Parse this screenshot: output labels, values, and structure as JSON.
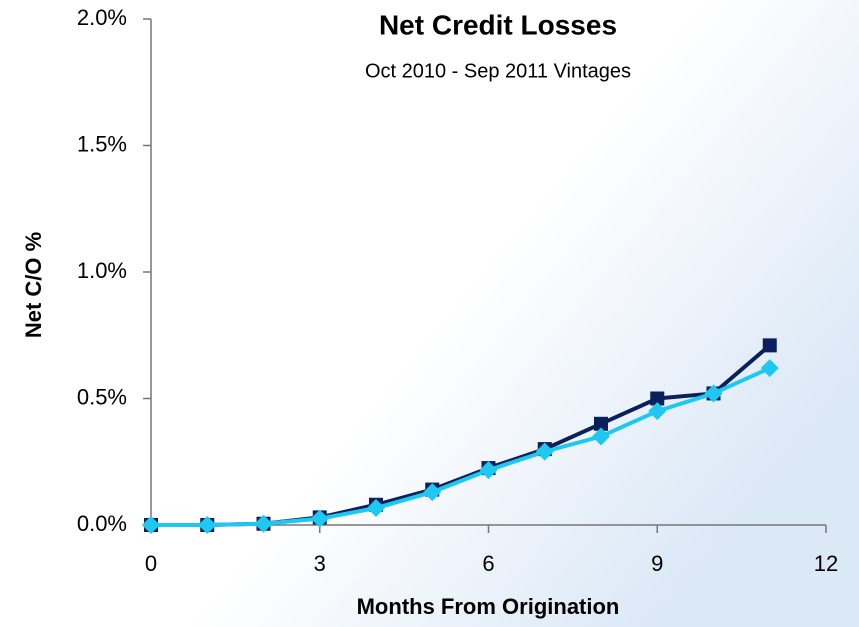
{
  "chart_data": {
    "type": "line",
    "title": "Net Credit Losses",
    "subtitle": "Oct 2010 - Sep 2011 Vintages",
    "x_label": "Months From Origination",
    "y_label": "Net C/O %",
    "x": [
      0,
      1,
      2,
      3,
      4,
      5,
      6,
      7,
      8,
      9,
      10,
      11
    ],
    "series": [
      {
        "color": "#0a1f5c",
        "marker": "square",
        "values": [
          0,
          0,
          0.005,
          0.03,
          0.08,
          0.14,
          0.225,
          0.3,
          0.4,
          0.5,
          0.52,
          0.71
        ]
      },
      {
        "color": "#1ec8f0",
        "marker": "diamond",
        "values": [
          0,
          0,
          0.005,
          0.025,
          0.067,
          0.13,
          0.217,
          0.29,
          0.35,
          0.45,
          0.52,
          0.62
        ]
      }
    ],
    "xlim": [
      0,
      12
    ],
    "xticks": [
      0,
      3,
      6,
      9,
      12
    ],
    "ylim": [
      0,
      2
    ],
    "yticks": [
      {
        "value": 0,
        "label": "0.0%"
      },
      {
        "value": 0.5,
        "label": "0.5%"
      },
      {
        "value": 1,
        "label": "1.0%"
      },
      {
        "value": 1.5,
        "label": "1.5%"
      },
      {
        "value": 2,
        "label": "2.0%"
      }
    ]
  }
}
